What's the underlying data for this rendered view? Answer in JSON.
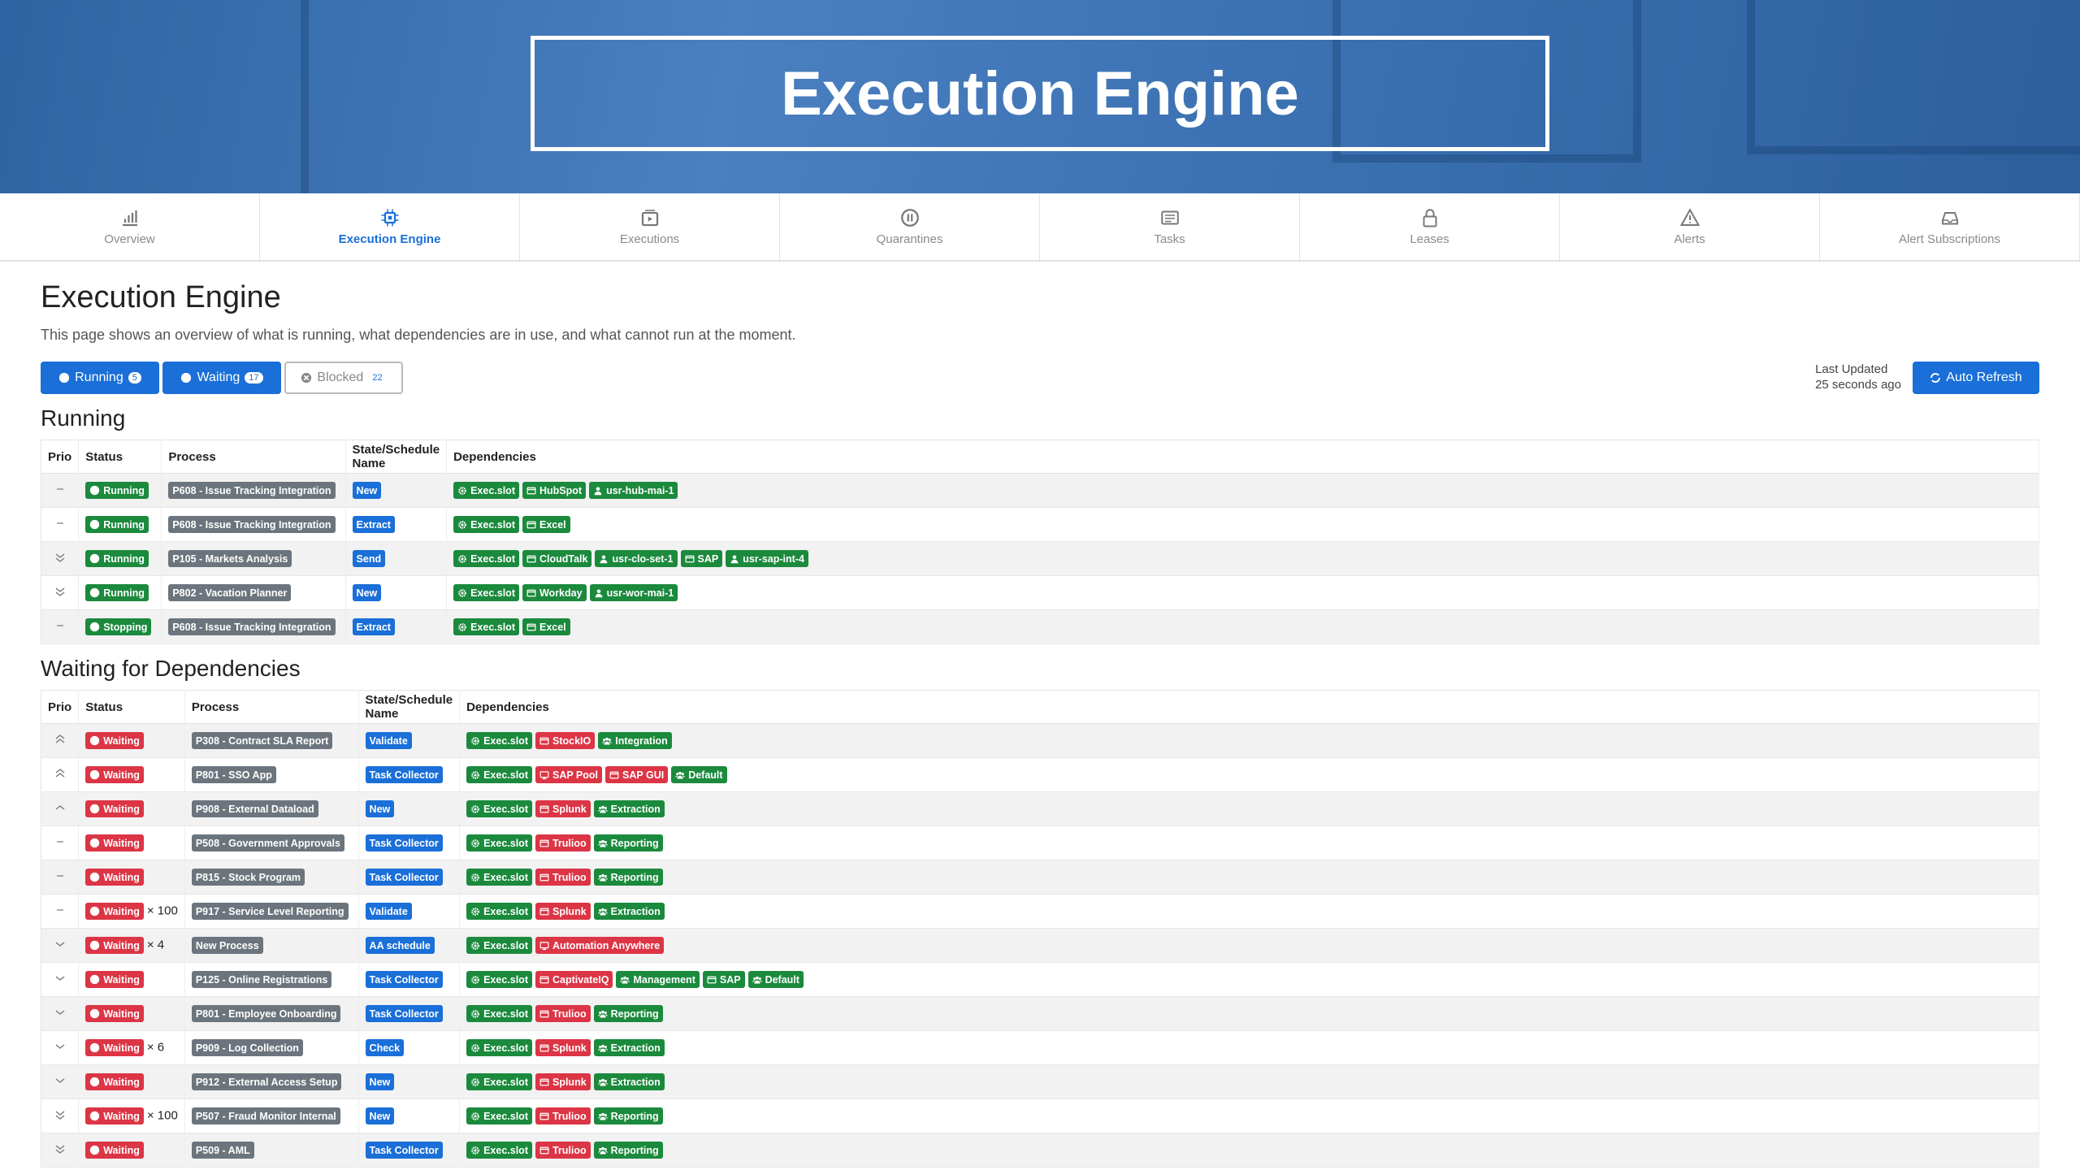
{
  "header": {
    "title": "Execution Engine"
  },
  "nav": {
    "active": 1,
    "tabs": [
      "Overview",
      "Execution Engine",
      "Executions",
      "Quarantines",
      "Tasks",
      "Leases",
      "Alerts",
      "Alert Subscriptions"
    ]
  },
  "page": {
    "title": "Execution Engine",
    "description": "This page shows an overview of what is running, what dependencies are in use, and what cannot run at the moment."
  },
  "filters": [
    {
      "label": "Running",
      "count": 5,
      "active": true
    },
    {
      "label": "Waiting",
      "count": 17,
      "active": true
    },
    {
      "label": "Blocked",
      "count": 22,
      "active": false
    }
  ],
  "refresh": {
    "label": "Last Updated",
    "value": "25 seconds ago",
    "button": "Auto Refresh"
  },
  "sections": [
    {
      "title": "Running",
      "columns": [
        "Prio",
        "Status",
        "Process",
        "State/Schedule Name",
        "Dependencies"
      ],
      "rows": [
        {
          "prio": "none",
          "status": "Running",
          "process": "P608 - Issue Tracking Integration",
          "state": "New",
          "deps": [
            {
              "label": "Exec.slot",
              "kind": "slot",
              "ok": true
            },
            {
              "label": "HubSpot",
              "kind": "resource",
              "ok": true
            },
            {
              "label": "usr-hub-mai-1",
              "kind": "user",
              "ok": true
            }
          ]
        },
        {
          "prio": "none",
          "status": "Running",
          "process": "P608 - Issue Tracking Integration",
          "state": "Extract",
          "deps": [
            {
              "label": "Exec.slot",
              "kind": "slot",
              "ok": true
            },
            {
              "label": "Excel",
              "kind": "resource",
              "ok": true
            }
          ]
        },
        {
          "prio": "lowest",
          "status": "Running",
          "process": "P105 - Markets Analysis",
          "state": "Send",
          "deps": [
            {
              "label": "Exec.slot",
              "kind": "slot",
              "ok": true
            },
            {
              "label": "CloudTalk",
              "kind": "resource",
              "ok": true
            },
            {
              "label": "usr-clo-set-1",
              "kind": "user",
              "ok": true
            },
            {
              "label": "SAP",
              "kind": "resource",
              "ok": true
            },
            {
              "label": "usr-sap-int-4",
              "kind": "user",
              "ok": true
            }
          ]
        },
        {
          "prio": "lowest",
          "status": "Running",
          "process": "P802 - Vacation Planner",
          "state": "New",
          "deps": [
            {
              "label": "Exec.slot",
              "kind": "slot",
              "ok": true
            },
            {
              "label": "Workday",
              "kind": "resource",
              "ok": true
            },
            {
              "label": "usr-wor-mai-1",
              "kind": "user",
              "ok": true
            }
          ]
        },
        {
          "prio": "none",
          "status": "Stopping",
          "process": "P608 - Issue Tracking Integration",
          "state": "Extract",
          "deps": [
            {
              "label": "Exec.slot",
              "kind": "slot",
              "ok": true
            },
            {
              "label": "Excel",
              "kind": "resource",
              "ok": true
            }
          ]
        }
      ]
    },
    {
      "title": "Waiting for Dependencies",
      "columns": [
        "Prio",
        "Status",
        "Process",
        "State/Schedule Name",
        "Dependencies"
      ],
      "rows": [
        {
          "prio": "highest",
          "status": "Waiting",
          "process": "P308 - Contract SLA Report",
          "state": "Validate",
          "deps": [
            {
              "label": "Exec.slot",
              "kind": "slot",
              "ok": true
            },
            {
              "label": "StockIO",
              "kind": "resource",
              "ok": false
            },
            {
              "label": "Integration",
              "kind": "group",
              "ok": true
            }
          ]
        },
        {
          "prio": "highest",
          "status": "Waiting",
          "process": "P801 - SSO App",
          "state": "Task Collector",
          "deps": [
            {
              "label": "Exec.slot",
              "kind": "slot",
              "ok": true
            },
            {
              "label": "SAP Pool",
              "kind": "screen",
              "ok": false
            },
            {
              "label": "SAP GUI",
              "kind": "resource",
              "ok": false
            },
            {
              "label": "Default",
              "kind": "group",
              "ok": true
            }
          ]
        },
        {
          "prio": "high",
          "status": "Waiting",
          "process": "P908 - External Dataload",
          "state": "New",
          "deps": [
            {
              "label": "Exec.slot",
              "kind": "slot",
              "ok": true
            },
            {
              "label": "Splunk",
              "kind": "resource",
              "ok": false
            },
            {
              "label": "Extraction",
              "kind": "group",
              "ok": true
            }
          ]
        },
        {
          "prio": "none",
          "status": "Waiting",
          "process": "P508 - Government Approvals",
          "state": "Task Collector",
          "deps": [
            {
              "label": "Exec.slot",
              "kind": "slot",
              "ok": true
            },
            {
              "label": "Trulioo",
              "kind": "resource",
              "ok": false
            },
            {
              "label": "Reporting",
              "kind": "group",
              "ok": true
            }
          ]
        },
        {
          "prio": "none",
          "status": "Waiting",
          "process": "P815 - Stock Program",
          "state": "Task Collector",
          "deps": [
            {
              "label": "Exec.slot",
              "kind": "slot",
              "ok": true
            },
            {
              "label": "Trulioo",
              "kind": "resource",
              "ok": false
            },
            {
              "label": "Reporting",
              "kind": "group",
              "ok": true
            }
          ]
        },
        {
          "prio": "none",
          "status": "Waiting",
          "count": "× 100",
          "process": "P917 - Service Level Reporting",
          "state": "Validate",
          "deps": [
            {
              "label": "Exec.slot",
              "kind": "slot",
              "ok": true
            },
            {
              "label": "Splunk",
              "kind": "resource",
              "ok": false
            },
            {
              "label": "Extraction",
              "kind": "group",
              "ok": true
            }
          ]
        },
        {
          "prio": "low",
          "status": "Waiting",
          "count": "× 4",
          "process": "New Process",
          "state": "AA schedule",
          "deps": [
            {
              "label": "Exec.slot",
              "kind": "slot",
              "ok": true
            },
            {
              "label": "Automation Anywhere",
              "kind": "screen",
              "ok": false
            }
          ]
        },
        {
          "prio": "low",
          "status": "Waiting",
          "process": "P125 - Online Registrations",
          "state": "Task Collector",
          "deps": [
            {
              "label": "Exec.slot",
              "kind": "slot",
              "ok": true
            },
            {
              "label": "CaptivateIQ",
              "kind": "resource",
              "ok": false
            },
            {
              "label": "Management",
              "kind": "group",
              "ok": true
            },
            {
              "label": "SAP",
              "kind": "resource",
              "ok": true
            },
            {
              "label": "Default",
              "kind": "group",
              "ok": true
            }
          ]
        },
        {
          "prio": "low",
          "status": "Waiting",
          "process": "P801 - Employee Onboarding",
          "state": "Task Collector",
          "deps": [
            {
              "label": "Exec.slot",
              "kind": "slot",
              "ok": true
            },
            {
              "label": "Trulioo",
              "kind": "resource",
              "ok": false
            },
            {
              "label": "Reporting",
              "kind": "group",
              "ok": true
            }
          ]
        },
        {
          "prio": "low",
          "status": "Waiting",
          "count": "× 6",
          "process": "P909 - Log Collection",
          "state": "Check",
          "deps": [
            {
              "label": "Exec.slot",
              "kind": "slot",
              "ok": true
            },
            {
              "label": "Splunk",
              "kind": "resource",
              "ok": false
            },
            {
              "label": "Extraction",
              "kind": "group",
              "ok": true
            }
          ]
        },
        {
          "prio": "low",
          "status": "Waiting",
          "process": "P912 - External Access Setup",
          "state": "New",
          "deps": [
            {
              "label": "Exec.slot",
              "kind": "slot",
              "ok": true
            },
            {
              "label": "Splunk",
              "kind": "resource",
              "ok": false
            },
            {
              "label": "Extraction",
              "kind": "group",
              "ok": true
            }
          ]
        },
        {
          "prio": "lowest",
          "status": "Waiting",
          "count": "× 100",
          "process": "P507 - Fraud Monitor Internal",
          "state": "New",
          "deps": [
            {
              "label": "Exec.slot",
              "kind": "slot",
              "ok": true
            },
            {
              "label": "Trulioo",
              "kind": "resource",
              "ok": false
            },
            {
              "label": "Reporting",
              "kind": "group",
              "ok": true
            }
          ]
        },
        {
          "prio": "lowest",
          "status": "Waiting",
          "process": "P509 - AML",
          "state": "Task Collector",
          "deps": [
            {
              "label": "Exec.slot",
              "kind": "slot",
              "ok": true
            },
            {
              "label": "Trulioo",
              "kind": "resource",
              "ok": false
            },
            {
              "label": "Reporting",
              "kind": "group",
              "ok": true
            }
          ]
        }
      ]
    }
  ]
}
